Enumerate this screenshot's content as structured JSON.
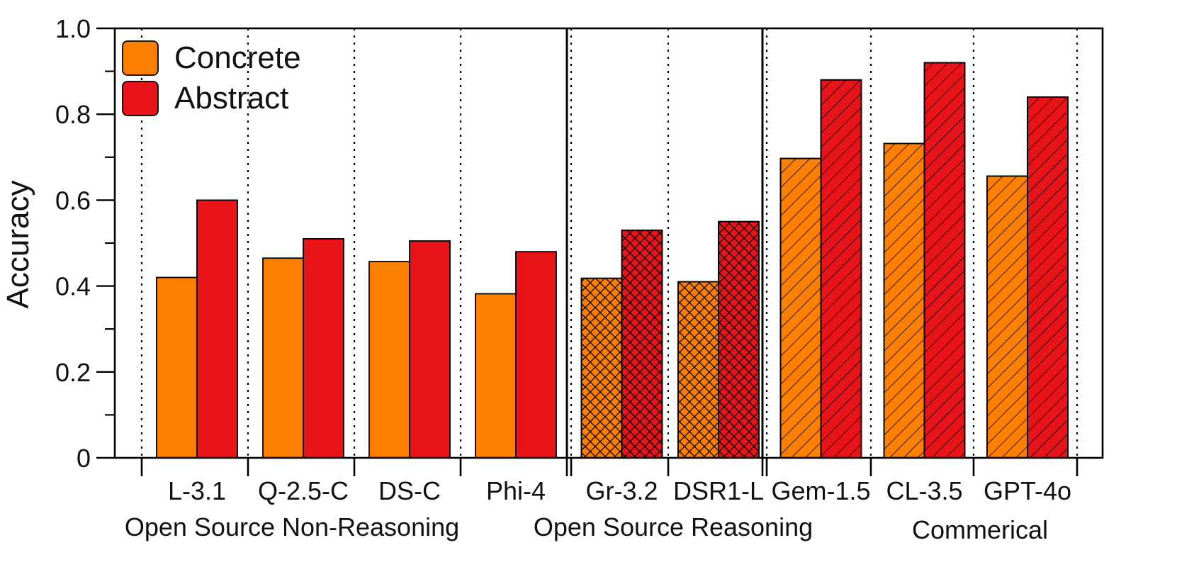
{
  "chart_data": {
    "type": "bar",
    "categories": [
      "L-3.1",
      "Q-2.5-C",
      "DS-C",
      "Phi-4",
      "Gr-3.2",
      "DSR1-L",
      "Gem-1.5",
      "CL-3.5",
      "GPT-4o"
    ],
    "groups": [
      {
        "label": "Open Source Non-Reasoning",
        "count": 4,
        "pattern": "solid"
      },
      {
        "label": "Open Source Reasoning",
        "count": 2,
        "pattern": "crosshatch"
      },
      {
        "label": "Commerical",
        "count": 3,
        "pattern": "diagonal"
      }
    ],
    "series": [
      {
        "name": "Concrete",
        "color": "#ff8000",
        "values": [
          0.42,
          0.465,
          0.457,
          0.382,
          0.418,
          0.41,
          0.697,
          0.732,
          0.656
        ]
      },
      {
        "name": "Abstract",
        "color": "#e8141a",
        "values": [
          0.6,
          0.51,
          0.505,
          0.48,
          0.53,
          0.55,
          0.88,
          0.92,
          0.84
        ]
      }
    ],
    "ylabel": "Accuracy",
    "xlabel": "",
    "ylim": [
      0,
      1.0
    ],
    "yticks": [
      "0",
      "0.2",
      "0.4",
      "0.6",
      "0.8",
      "1.0"
    ],
    "legend_position": "top-left",
    "grid": false
  }
}
